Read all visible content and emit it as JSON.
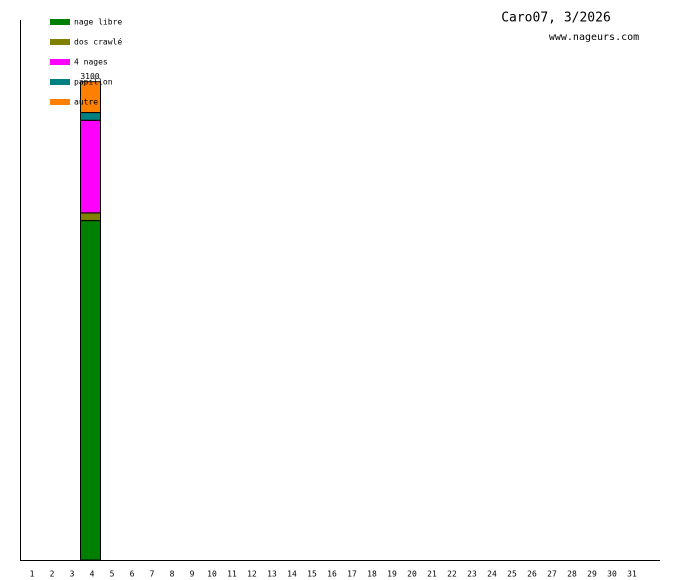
{
  "chart_data": {
    "type": "stacked-bar",
    "title": "Caro07, 3/2026",
    "subtitle": "www.nageurs.com",
    "categories": [
      "1",
      "2",
      "3",
      "4",
      "5",
      "6",
      "7",
      "8",
      "9",
      "10",
      "11",
      "12",
      "13",
      "14",
      "15",
      "16",
      "17",
      "18",
      "19",
      "20",
      "21",
      "22",
      "23",
      "24",
      "25",
      "26",
      "27",
      "28",
      "29",
      "30",
      "31"
    ],
    "series": [
      {
        "name": "nage libre",
        "color": "#008000",
        "values": [
          null,
          null,
          null,
          2200,
          null,
          null,
          null,
          null,
          null,
          null,
          null,
          null,
          null,
          null,
          null,
          null,
          null,
          null,
          null,
          null,
          null,
          null,
          null,
          null,
          null,
          null,
          null,
          null,
          null,
          null,
          null
        ]
      },
      {
        "name": "dos crawlé",
        "color": "#808000",
        "values": [
          null,
          null,
          null,
          50,
          null,
          null,
          null,
          null,
          null,
          null,
          null,
          null,
          null,
          null,
          null,
          null,
          null,
          null,
          null,
          null,
          null,
          null,
          null,
          null,
          null,
          null,
          null,
          null,
          null,
          null,
          null
        ]
      },
      {
        "name": "4 nages",
        "color": "#ff00ff",
        "values": [
          null,
          null,
          null,
          600,
          null,
          null,
          null,
          null,
          null,
          null,
          null,
          null,
          null,
          null,
          null,
          null,
          null,
          null,
          null,
          null,
          null,
          null,
          null,
          null,
          null,
          null,
          null,
          null,
          null,
          null,
          null
        ]
      },
      {
        "name": "papillon",
        "color": "#008080",
        "values": [
          null,
          null,
          null,
          50,
          null,
          null,
          null,
          null,
          null,
          null,
          null,
          null,
          null,
          null,
          null,
          null,
          null,
          null,
          null,
          null,
          null,
          null,
          null,
          null,
          null,
          null,
          null,
          null,
          null,
          null,
          null
        ]
      },
      {
        "name": "autre",
        "color": "#ff8000",
        "values": [
          null,
          null,
          null,
          200,
          null,
          null,
          null,
          null,
          null,
          null,
          null,
          null,
          null,
          null,
          null,
          null,
          null,
          null,
          null,
          null,
          null,
          null,
          null,
          null,
          null,
          null,
          null,
          null,
          null,
          null,
          null
        ]
      }
    ],
    "totals": [
      null,
      null,
      null,
      3100,
      null,
      null,
      null,
      null,
      null,
      null,
      null,
      null,
      null,
      null,
      null,
      null,
      null,
      null,
      null,
      null,
      null,
      null,
      null,
      null,
      null,
      null,
      null,
      null,
      null,
      null,
      null
    ],
    "ylim": [
      0,
      3500
    ]
  }
}
